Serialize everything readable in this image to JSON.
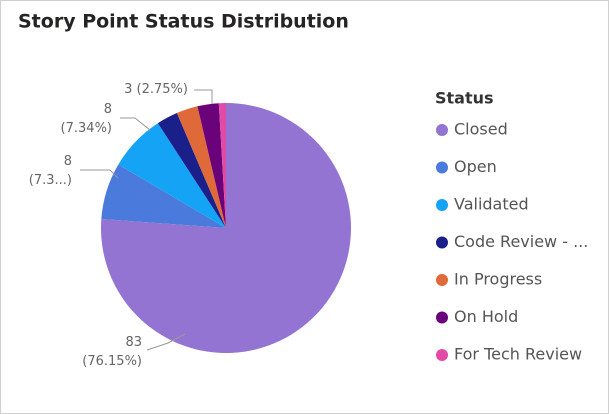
{
  "chart_data": {
    "type": "pie",
    "title": "Story Point Status Distribution",
    "legend_title": "Status",
    "categories": [
      "Closed",
      "Open",
      "Validated",
      "Code Review - ...",
      "In Progress",
      "On Hold",
      "For Tech Review"
    ],
    "values": [
      83,
      8,
      8,
      3,
      3,
      3,
      1
    ],
    "value_labels": [
      "83\n(76.15%)",
      "8\n(7.3...)",
      "8\n(7.34%)",
      null,
      null,
      "3 (2.75%)",
      null
    ],
    "colors": [
      "#9474d2",
      "#4a7bdc",
      "#14a3f5",
      "#1b1f8a",
      "#e0693a",
      "#6a037a",
      "#e24aa8"
    ],
    "legend": "right"
  }
}
